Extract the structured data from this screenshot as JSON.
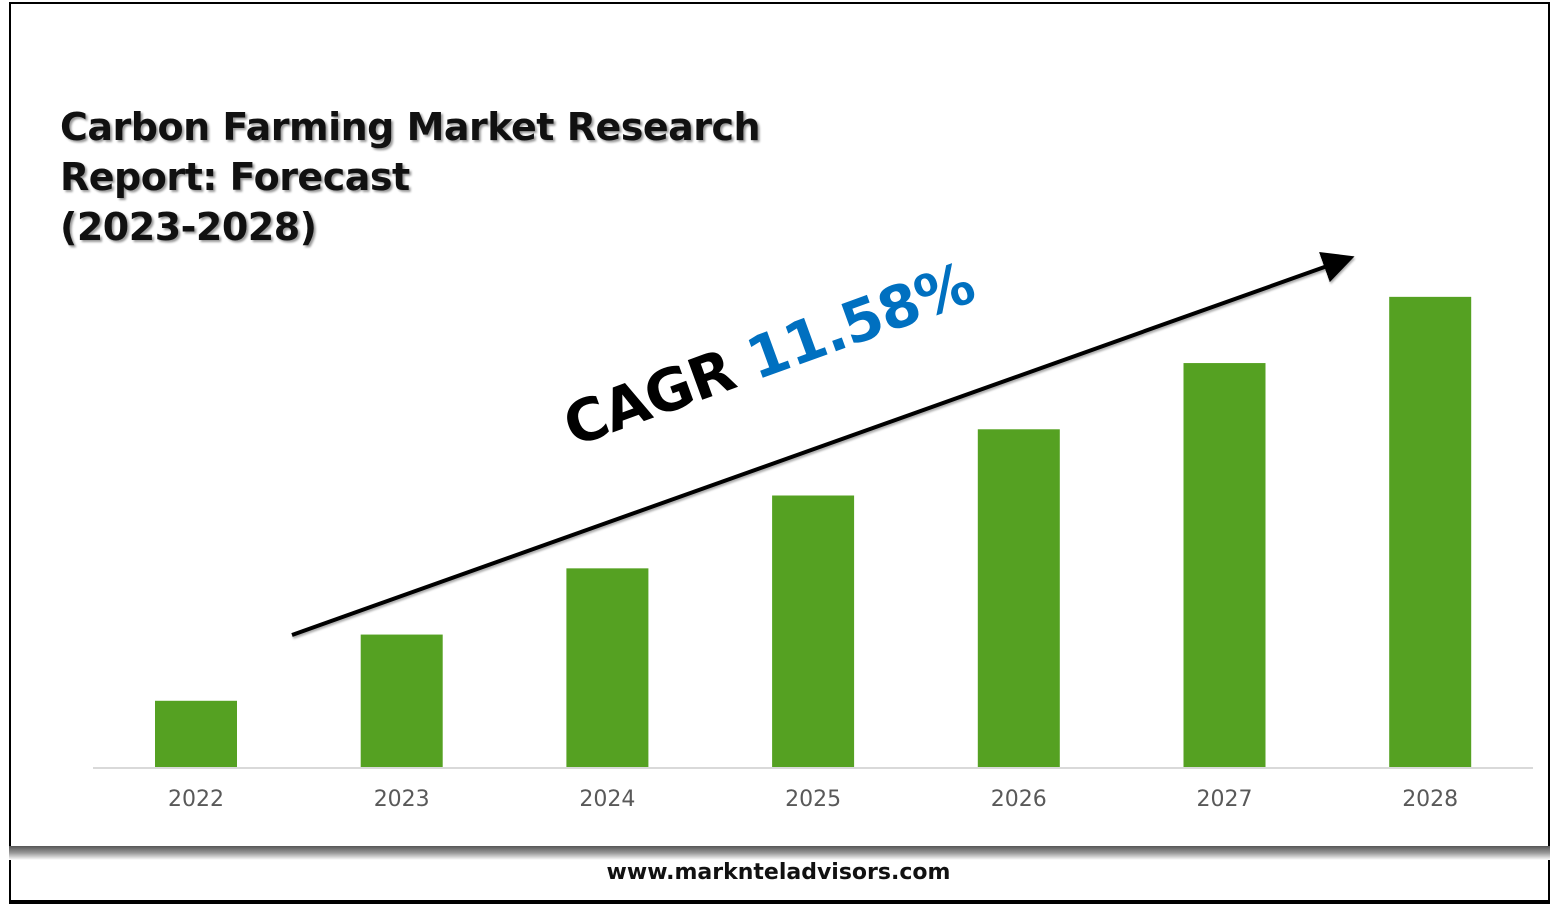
{
  "title": "Carbon Farming Market Research\nReport: Forecast\n(2023-2028)",
  "cagr": {
    "label": "CAGR",
    "value": "11.58%"
  },
  "footer": "www.marknteladvisors.com",
  "colors": {
    "bar": "#55a122",
    "cagr_value": "#0070c0",
    "axis": "#d9d9d9",
    "tick_label": "#595959"
  },
  "chart_data": {
    "type": "bar",
    "title": "Carbon Farming Market Research Report: Forecast (2023-2028)",
    "categories": [
      "2022",
      "2023",
      "2024",
      "2025",
      "2026",
      "2027",
      "2028"
    ],
    "values": [
      1.0,
      2.0,
      3.0,
      4.1,
      5.1,
      6.1,
      7.1
    ],
    "value_note": "relative bar heights, no y-axis printed",
    "ylim": [
      0,
      7.3
    ],
    "grid": false,
    "legend": "none",
    "annotation": "CAGR 11.58%",
    "trend_arrow": true
  }
}
